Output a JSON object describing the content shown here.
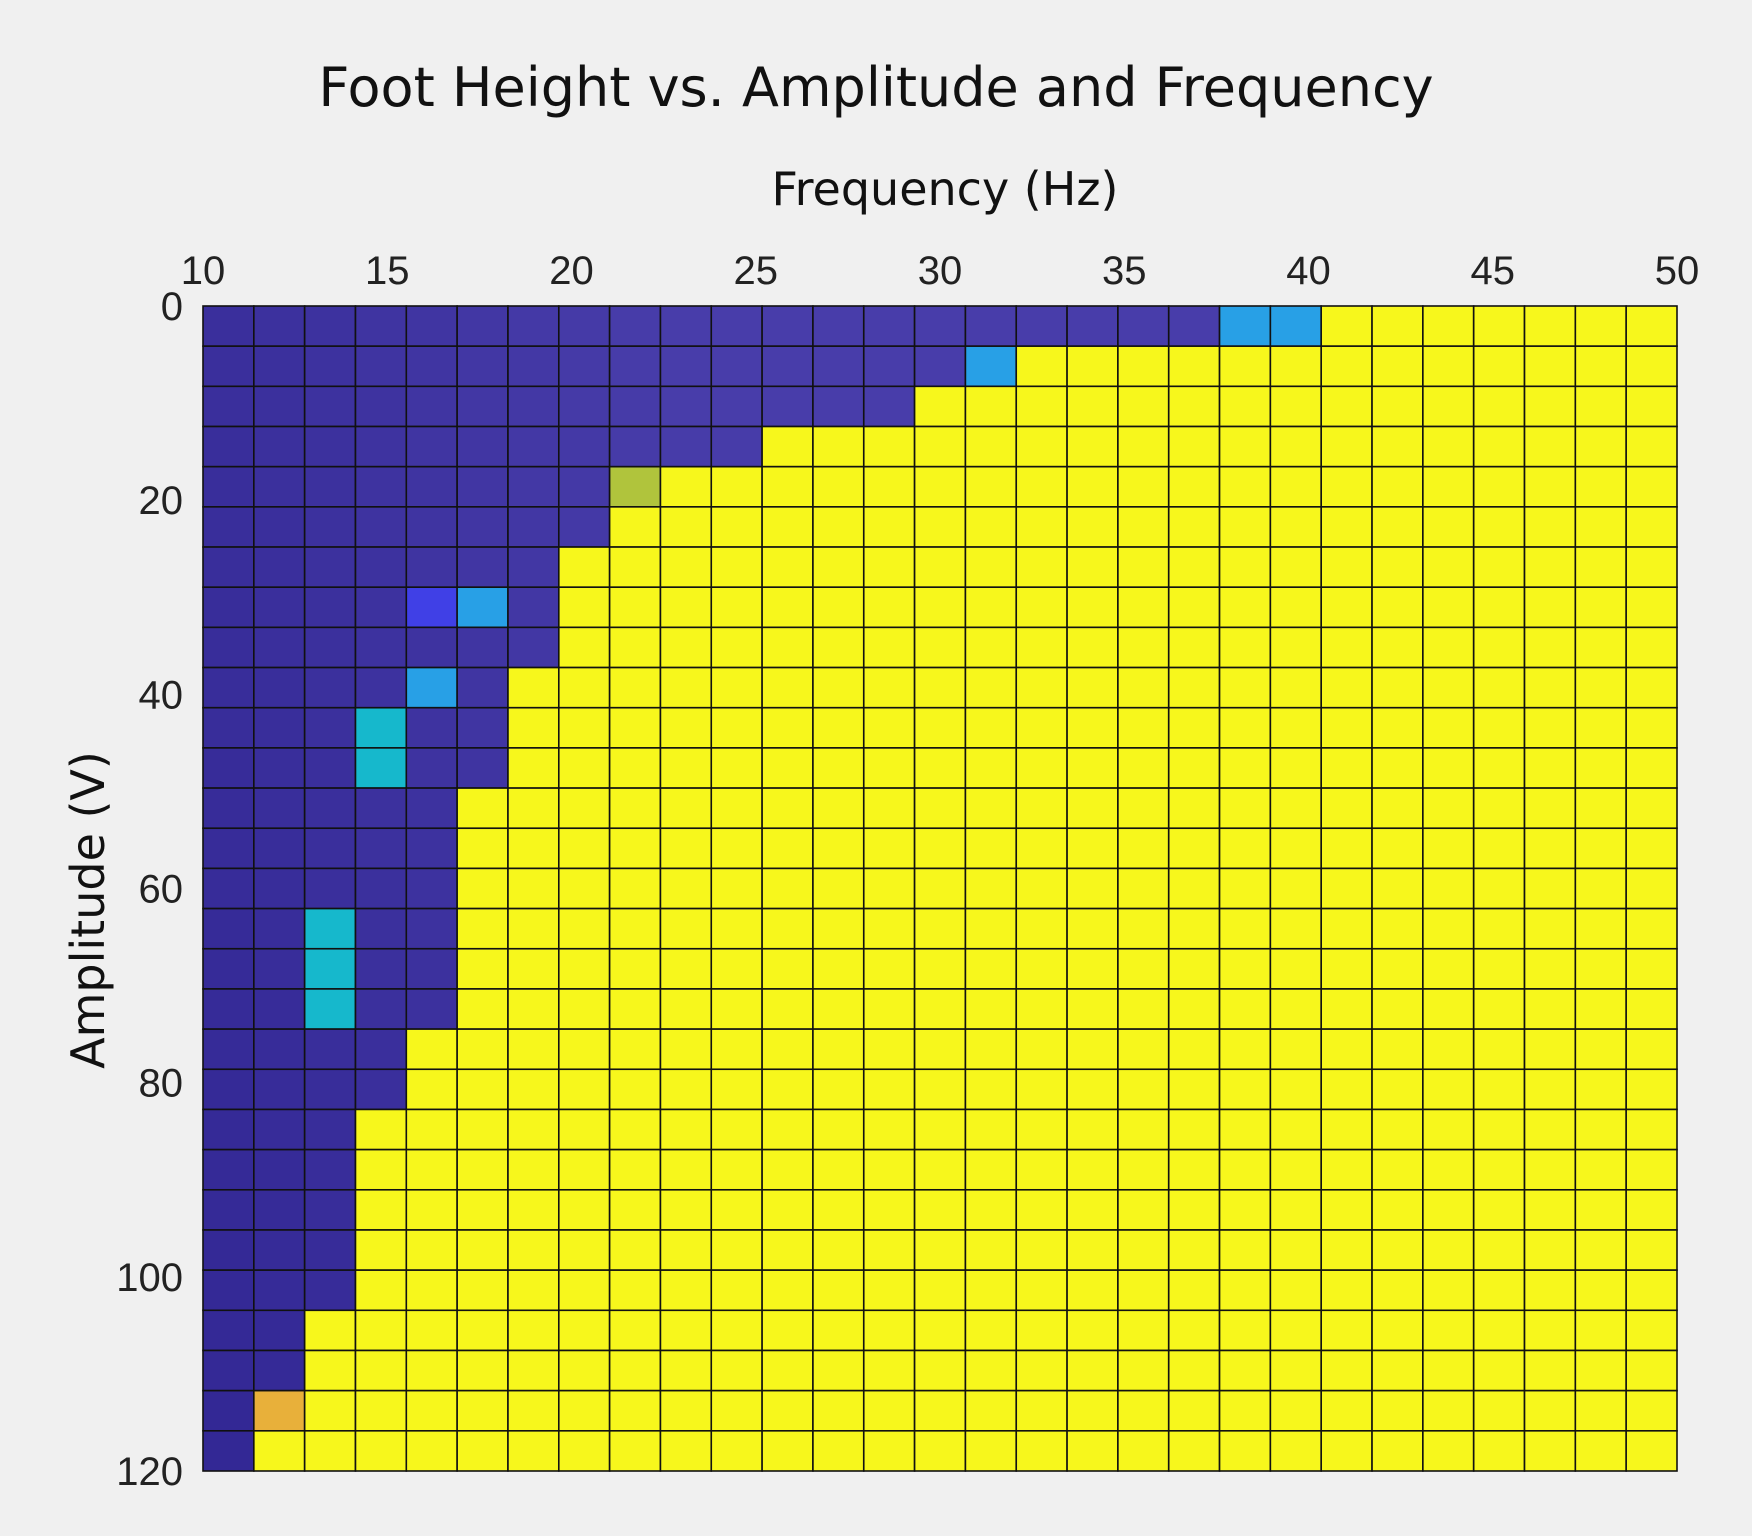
{
  "chart_data": {
    "type": "heatmap",
    "title": "Foot Height vs. Amplitude and Frequency",
    "xlabel": "Frequency (Hz)",
    "ylabel": "Amplitude (V)",
    "xlim": [
      10,
      50
    ],
    "ylim": [
      0,
      120
    ],
    "x_axis_location": "top",
    "y_axis_direction": "reversed",
    "xticks": [
      10,
      15,
      20,
      25,
      30,
      35,
      40,
      45,
      50
    ],
    "yticks": [
      0,
      20,
      40,
      60,
      80,
      100,
      120
    ],
    "grid": true,
    "cell_columns": 29,
    "cell_rows": 29,
    "low_color": "#3a2f9c",
    "high_color": "#f7f71c",
    "boundary_by_column": [
      29,
      28,
      25,
      20,
      18,
      12,
      9,
      6,
      5,
      4,
      4,
      3,
      3,
      3,
      2,
      2,
      1,
      1,
      1,
      1,
      0,
      0,
      0,
      0,
      0,
      0,
      0,
      0,
      0
    ],
    "transition_cells": [
      {
        "column": 1,
        "row": 27,
        "color": "#e8b03a"
      },
      {
        "column": 2,
        "row": 15,
        "color": "#16b8cc"
      },
      {
        "column": 2,
        "row": 16,
        "color": "#16b8cc"
      },
      {
        "column": 2,
        "row": 17,
        "color": "#16b8cc"
      },
      {
        "column": 3,
        "row": 10,
        "color": "#16b8cc"
      },
      {
        "column": 3,
        "row": 11,
        "color": "#16b8cc"
      },
      {
        "column": 4,
        "row": 7,
        "color": "#4040e6"
      },
      {
        "column": 4,
        "row": 9,
        "color": "#28a0e6"
      },
      {
        "column": 5,
        "row": 7,
        "color": "#28a0e6"
      },
      {
        "column": 8,
        "row": 4,
        "color": "#b0c43c"
      },
      {
        "column": 15,
        "row": 1,
        "color": "#28a0e6"
      },
      {
        "column": 20,
        "row": 0,
        "color": "#28a0e6"
      },
      {
        "column": 21,
        "row": 0,
        "color": "#28a0e6"
      }
    ]
  }
}
